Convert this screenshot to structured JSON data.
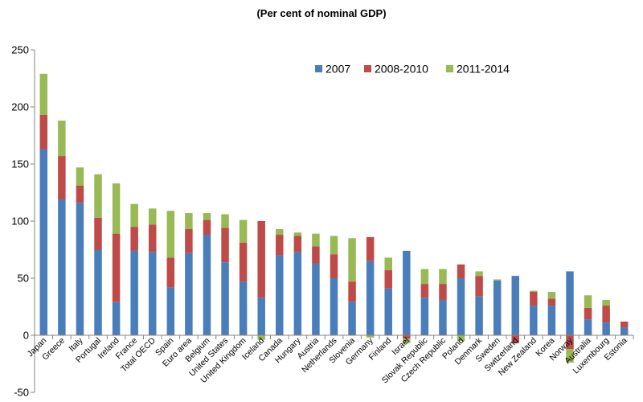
{
  "chart_data": {
    "type": "bar",
    "stacked": true,
    "title": "(Per cent of nominal GDP)",
    "xlabel": "",
    "ylabel": "",
    "ylim": [
      -50,
      250
    ],
    "yticks": [
      -50,
      0,
      50,
      100,
      150,
      200,
      250
    ],
    "grid": false,
    "legend_position": "top-right",
    "categories": [
      "Japan",
      "Greece",
      "Italy",
      "Portugal",
      "Ireland",
      "France",
      "Total OECD",
      "Spain",
      "Euro area",
      "Belgium",
      "United States",
      "United Kingdom",
      "Iceland",
      "Canada",
      "Hungary",
      "Austria",
      "Netherlands",
      "Slovenia",
      "Germany",
      "Finland",
      "Israel",
      "Slovak Republic",
      "Czech Republic",
      "Poland",
      "Denmark",
      "Sweden",
      "Switzerland",
      "New Zealand",
      "Korea",
      "Norway",
      "Australia",
      "Luxembourg",
      "Estonia"
    ],
    "series": [
      {
        "name": "2007",
        "color": "#4a7ebb",
        "values": [
          163,
          119,
          116,
          75,
          29,
          74,
          73,
          42,
          72,
          88,
          64,
          47,
          33,
          70,
          73,
          63,
          50,
          29,
          65,
          41,
          74,
          33,
          31,
          50,
          34,
          48,
          52,
          26,
          26,
          56,
          14,
          11,
          7
        ]
      },
      {
        "name": "2008-2010",
        "color": "#be4b48",
        "values": [
          30,
          38,
          15,
          28,
          60,
          21,
          24,
          26,
          21,
          13,
          30,
          34,
          67,
          18,
          14,
          15,
          21,
          18,
          21,
          16,
          -3,
          12,
          14,
          12,
          18,
          0,
          -7,
          12,
          6,
          -12,
          10,
          15,
          5
        ]
      },
      {
        "name": "2011-2014",
        "color": "#98b954",
        "values": [
          36,
          31,
          16,
          38,
          44,
          20,
          14,
          41,
          14,
          6,
          12,
          20,
          -4,
          5,
          3,
          11,
          16,
          38,
          -2,
          11,
          -4,
          13,
          13,
          -5,
          4,
          1,
          0,
          1,
          6,
          -12,
          11,
          5,
          0
        ]
      }
    ]
  }
}
